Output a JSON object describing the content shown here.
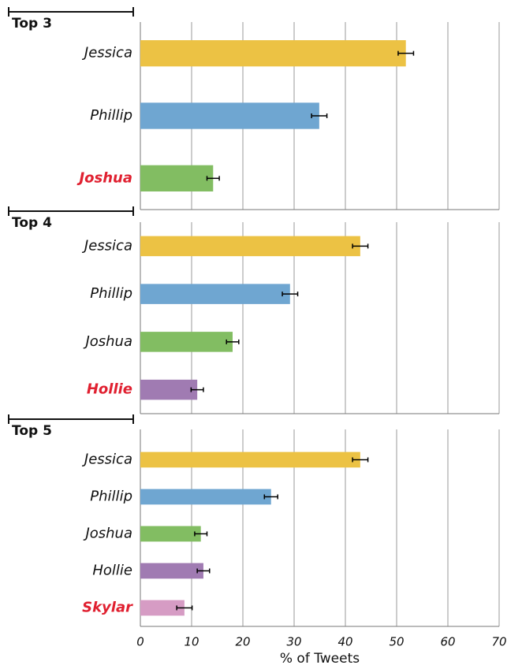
{
  "chart_data": [
    {
      "type": "bar",
      "title": "Top 3",
      "categories": [
        "Jessica",
        "Phillip",
        "Joshua"
      ],
      "values": [
        51.8,
        34.9,
        14.2
      ],
      "errors": [
        1.5,
        1.5,
        1.2
      ],
      "colors": [
        "#ecc244",
        "#6fa6d1",
        "#82bd62"
      ],
      "highlight_color": "#e02030",
      "xlim": [
        0,
        70
      ],
      "xticks": [
        0,
        10,
        20,
        30,
        40,
        50,
        60,
        70
      ],
      "grid": true
    },
    {
      "type": "bar",
      "title": "Top 4",
      "categories": [
        "Jessica",
        "Phillip",
        "Joshua",
        "Hollie"
      ],
      "values": [
        42.9,
        29.2,
        18.0,
        11.1
      ],
      "errors": [
        1.5,
        1.5,
        1.2,
        1.2
      ],
      "colors": [
        "#ecc244",
        "#6fa6d1",
        "#82bd62",
        "#a07bb2"
      ],
      "highlight_color": "#e02030",
      "xlim": [
        0,
        70
      ],
      "xticks": [
        0,
        10,
        20,
        30,
        40,
        50,
        60,
        70
      ],
      "grid": true
    },
    {
      "type": "bar",
      "title": "Top 5",
      "categories": [
        "Jessica",
        "Phillip",
        "Joshua",
        "Hollie",
        "Skylar"
      ],
      "values": [
        42.9,
        25.5,
        11.8,
        12.3,
        8.6
      ],
      "errors": [
        1.5,
        1.3,
        1.2,
        1.2,
        1.5
      ],
      "colors": [
        "#ecc244",
        "#6fa6d1",
        "#82bd62",
        "#a07bb2",
        "#d69cc4"
      ],
      "highlight_color": "#e02030",
      "xlabel": "% of Tweets",
      "xlim": [
        0,
        70
      ],
      "xticks": [
        0,
        10,
        20,
        30,
        40,
        50,
        60,
        70
      ],
      "grid": true
    }
  ]
}
